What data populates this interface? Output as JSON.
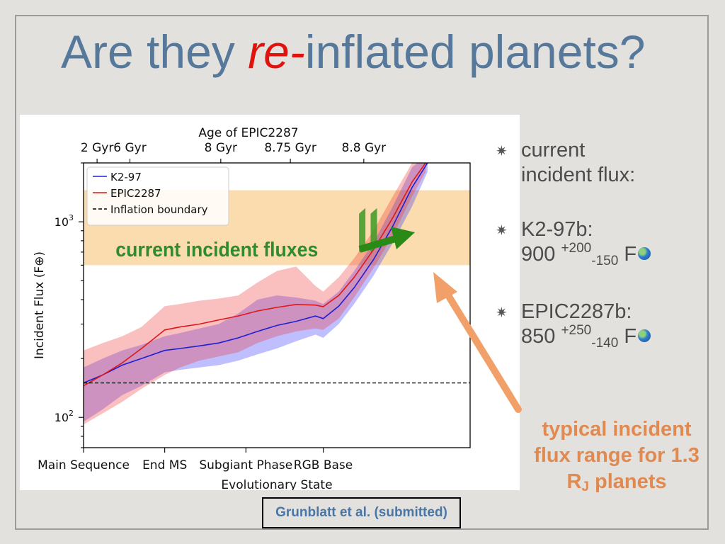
{
  "slide": {
    "title_part1": "Are they ",
    "title_em": "re-",
    "title_part2": "inflated planets?",
    "bullets": [
      {
        "line1": "current",
        "line2": "incident flux:"
      },
      {
        "line1": "K2-97b:",
        "value": "900",
        "plus": "+200",
        "minus": "-150",
        "unit": "F"
      },
      {
        "line1": "EPIC2287b:",
        "value": "850",
        "plus": "+250",
        "minus": "-140",
        "unit": "F"
      }
    ],
    "orange_note": {
      "line1": "typical incident",
      "line2": "flux range for 1.3",
      "line3_main": "R",
      "line3_sub": "J",
      "line3_rest": " planets"
    },
    "citation": "Grunblatt et al. (submitted)",
    "colors": {
      "title": "#55789b",
      "title_em": "#e0140e",
      "annotation_green": "#2e8b2e",
      "annotation_orange": "#e08a52",
      "citation": "#4a76a6"
    }
  },
  "chart_data": {
    "type": "line",
    "xlabel": "Evolutionary State",
    "ylabel": "Incident Flux (F⊕)",
    "top_axis_label": "Age of EPIC2287",
    "x_range": [
      0,
      10
    ],
    "ylim": [
      70,
      2000
    ],
    "y_scale": "log",
    "bottom_ticks": [
      {
        "x": 0,
        "label": "Main Sequence"
      },
      {
        "x": 2.1,
        "label": "End MS"
      },
      {
        "x": 4.2,
        "label": "Subgiant Phase"
      },
      {
        "x": 6.2,
        "label": "RGB Base"
      }
    ],
    "top_ticks": [
      {
        "x": 0.35,
        "label": "2 Gyr"
      },
      {
        "x": 1.2,
        "label": "6 Gyr"
      },
      {
        "x": 3.55,
        "label": "8 Gyr"
      },
      {
        "x": 5.35,
        "label": "8.75 Gyr"
      },
      {
        "x": 7.25,
        "label": "8.8 Gyr"
      }
    ],
    "y_ticks": [
      {
        "v": 100,
        "base": "10",
        "exp": "2"
      },
      {
        "v": 1000,
        "base": "10",
        "exp": "3"
      }
    ],
    "legend_placement": "top-left",
    "series": [
      {
        "name": "K2-97",
        "color": "#1f1fd6",
        "x": [
          0,
          0.5,
          1.0,
          1.5,
          2.1,
          2.5,
          3.0,
          3.5,
          4.0,
          4.5,
          5.0,
          5.5,
          6.0,
          6.2,
          6.6,
          7.0,
          7.5,
          8.0,
          8.5,
          8.9
        ],
        "values": [
          150,
          165,
          185,
          200,
          220,
          225,
          232,
          240,
          255,
          275,
          295,
          310,
          330,
          320,
          370,
          460,
          640,
          950,
          1500,
          2000
        ]
      },
      {
        "name": "EPIC2287",
        "color": "#e01818",
        "x": [
          0,
          0.5,
          1.0,
          1.5,
          2.1,
          2.5,
          3.0,
          3.5,
          4.0,
          4.5,
          5.0,
          5.5,
          6.0,
          6.2,
          6.6,
          7.0,
          7.5,
          8.0,
          8.5,
          8.85
        ],
        "values": [
          145,
          165,
          190,
          225,
          280,
          290,
          300,
          315,
          330,
          350,
          365,
          378,
          375,
          368,
          420,
          520,
          720,
          1050,
          1600,
          2000
        ]
      },
      {
        "name": "Inflation boundary",
        "color": "#000000",
        "style": "dashed",
        "x": [
          0,
          10
        ],
        "values": [
          150,
          150
        ]
      }
    ],
    "bands": [
      {
        "series": "K2-97",
        "color": "#2b2bff",
        "opacity": 0.3,
        "x": [
          0,
          0.5,
          1.0,
          1.5,
          2.1,
          2.5,
          3.0,
          3.5,
          4.0,
          4.5,
          5.0,
          5.5,
          6.0,
          6.2,
          6.6,
          7.0,
          7.5,
          8.0,
          8.5,
          8.9
        ],
        "upper": [
          180,
          200,
          220,
          235,
          260,
          270,
          285,
          300,
          340,
          400,
          420,
          410,
          395,
          380,
          440,
          560,
          780,
          1200,
          1900,
          2200
        ],
        "lower": [
          95,
          110,
          130,
          145,
          170,
          175,
          180,
          185,
          195,
          210,
          225,
          245,
          265,
          255,
          300,
          380,
          530,
          780,
          1200,
          1800
        ]
      },
      {
        "series": "EPIC2287",
        "color": "#ee2b2b",
        "opacity": 0.3,
        "x": [
          0,
          0.5,
          1.0,
          1.5,
          2.1,
          2.5,
          3.0,
          3.5,
          4.0,
          4.5,
          5.0,
          5.5,
          6.0,
          6.2,
          6.6,
          7.0,
          7.5,
          8.0,
          8.5,
          8.85
        ],
        "upper": [
          220,
          240,
          260,
          290,
          370,
          380,
          395,
          405,
          420,
          490,
          560,
          590,
          470,
          440,
          520,
          650,
          900,
          1350,
          2000,
          2300
        ],
        "lower": [
          92,
          105,
          120,
          140,
          165,
          180,
          195,
          205,
          215,
          240,
          260,
          275,
          285,
          280,
          320,
          410,
          580,
          850,
          1350,
          1800
        ]
      }
    ],
    "highlight_band": {
      "lower": 600,
      "upper": 1450,
      "color": "#fbdcae"
    },
    "current_markers": [
      {
        "x": 7.2,
        "lower": 700,
        "upper": 1100
      },
      {
        "x": 7.5,
        "lower": 700,
        "upper": 1100
      }
    ],
    "annotation": {
      "text": "current incident fluxes",
      "color": "#2e8b2e"
    }
  }
}
